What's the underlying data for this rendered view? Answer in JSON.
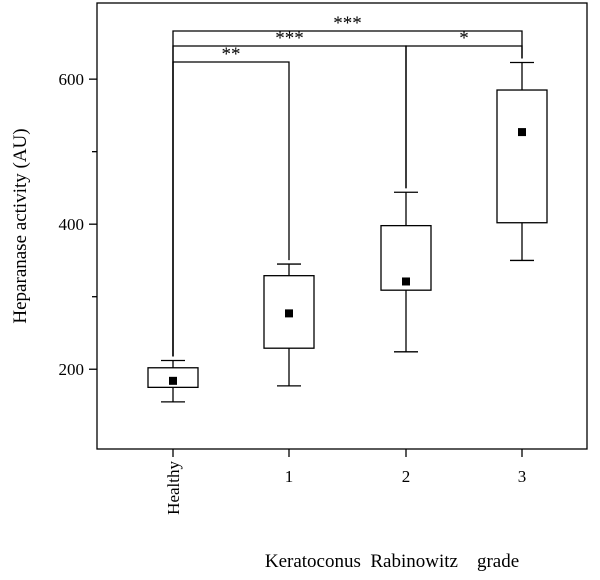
{
  "chart_data": {
    "type": "box",
    "ylabel": "Heparanase activity (AU)",
    "xlabel": "Keratoconus  Rabinowitz    grade",
    "ylim": [
      90,
      705
    ],
    "y_ticks": [
      200,
      400,
      600
    ],
    "y_minor_ticks": [
      300,
      500
    ],
    "grid": false,
    "categories": [
      "Healthy",
      "1",
      "2",
      "3"
    ],
    "boxes": [
      {
        "category": "Healthy",
        "whisker_low": 155,
        "q1": 175,
        "q3": 202,
        "whisker_high": 212,
        "mean": 184
      },
      {
        "category": "1",
        "whisker_low": 177,
        "q1": 229,
        "q3": 329,
        "whisker_high": 345,
        "mean": 277
      },
      {
        "category": "2",
        "whisker_low": 224,
        "q1": 309,
        "q3": 398,
        "whisker_high": 444,
        "mean": 321
      },
      {
        "category": "3",
        "whisker_low": 350,
        "q1": 402,
        "q3": 585,
        "whisker_high": 623,
        "mean": 527
      }
    ],
    "significance": [
      {
        "from": "Healthy",
        "to": "1",
        "label": "**"
      },
      {
        "from": "Healthy",
        "to": "2",
        "label": "***"
      },
      {
        "from": "Healthy",
        "to": "3",
        "label": "***"
      },
      {
        "from": "2",
        "to": "3",
        "label": "*"
      }
    ]
  }
}
